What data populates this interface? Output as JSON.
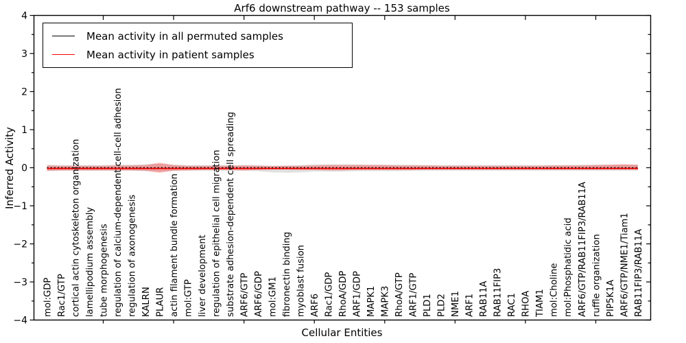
{
  "chart_data": {
    "type": "line",
    "title": "Arf6 downstream pathway -- 153 samples",
    "xlabel": "Cellular Entities",
    "ylabel": "Inferred Activity",
    "ylim": [
      -4,
      4
    ],
    "yticks": [
      4,
      3,
      2,
      1,
      0,
      -1,
      -2,
      -3,
      -4
    ],
    "ytick_labels": [
      "4",
      "3",
      "2",
      "1",
      "0",
      "−1",
      "−2",
      "−3",
      "−4"
    ],
    "grid": false,
    "legend_position": "upper left",
    "categories": [
      "mol:GDP",
      "Rac1/GTP",
      "cortical actin cytoskeleton organization",
      "lamellipodium assembly",
      "tube morphogenesis",
      "regulation of calcium-dependent cell-cell adhesion",
      "regulation of axonogenesis",
      "KALRN",
      "PLAUR",
      "actin filament bundle formation",
      "mol:GTP",
      "liver development",
      "regulation of epithelial cell migration",
      "substrate adhesion-dependent cell spreading",
      "ARF6/GTP",
      "ARF6/GDP",
      "mol:GM1",
      "fibronectin binding",
      "myoblast fusion",
      "ARF6",
      "Rac1/GDP",
      "RhoA/GDP",
      "ARF1/GDP",
      "MAPK1",
      "MAPK3",
      "RhoA/GTP",
      "ARF1/GTP",
      "PLD1",
      "PLD2",
      "NME1",
      "ARF1",
      "RAB11A",
      "RAB11FIP3",
      "RAC1",
      "RHOA",
      "TIAM1",
      "mol:Choline",
      "mol:Phosphatidic acid",
      "ARF6/GTP/RAB11FIP3/RAB11A",
      "ruffle organization",
      "PIP5K1A",
      "ARF6/GTP/NME1/Tiam1",
      "RAB11FIP3/RAB11A"
    ],
    "series": [
      {
        "name": "Mean activity in all permuted samples",
        "color": "#000000",
        "line_style": "dotted",
        "band_color": "#999999",
        "band_opacity": 0.3,
        "mean": [
          0,
          0,
          0,
          0,
          0,
          0,
          0,
          0,
          0,
          0,
          0,
          0,
          0,
          0,
          0,
          0,
          0,
          0,
          0,
          0,
          0,
          0,
          0,
          0,
          0,
          0,
          0,
          0,
          0,
          0,
          0,
          0,
          0,
          0,
          0,
          0,
          0,
          0,
          0,
          0,
          0,
          0,
          0
        ],
        "band_upper": [
          0.08,
          0.07,
          0.07,
          0.07,
          0.07,
          0.08,
          0.08,
          0.09,
          0.1,
          0.08,
          0.07,
          0.07,
          0.07,
          0.07,
          0.07,
          0.07,
          0.06,
          0.06,
          0.07,
          0.09,
          0.09,
          0.09,
          0.09,
          0.08,
          0.08,
          0.08,
          0.08,
          0.07,
          0.07,
          0.07,
          0.07,
          0.07,
          0.07,
          0.07,
          0.07,
          0.07,
          0.07,
          0.07,
          0.08,
          0.08,
          0.08,
          0.08,
          0.08
        ],
        "band_lower": [
          -0.09,
          -0.08,
          -0.08,
          -0.08,
          -0.08,
          -0.08,
          -0.08,
          -0.09,
          -0.1,
          -0.08,
          -0.08,
          -0.08,
          -0.08,
          -0.08,
          -0.08,
          -0.09,
          -0.12,
          -0.13,
          -0.12,
          -0.1,
          -0.1,
          -0.1,
          -0.09,
          -0.09,
          -0.09,
          -0.09,
          -0.08,
          -0.08,
          -0.08,
          -0.08,
          -0.08,
          -0.08,
          -0.08,
          -0.08,
          -0.08,
          -0.08,
          -0.08,
          -0.08,
          -0.08,
          -0.08,
          -0.08,
          -0.08,
          -0.08
        ]
      },
      {
        "name": "Mean activity in patient samples",
        "color": "#ff0000",
        "line_style": "solid",
        "band_color": "#ff0000",
        "band_opacity": 0.3,
        "mean": [
          -0.02,
          -0.02,
          -0.02,
          -0.02,
          -0.02,
          -0.02,
          -0.02,
          -0.02,
          -0.02,
          -0.02,
          -0.02,
          -0.02,
          -0.02,
          -0.02,
          -0.02,
          -0.02,
          -0.02,
          -0.02,
          -0.02,
          -0.02,
          -0.02,
          -0.02,
          -0.02,
          -0.02,
          -0.02,
          -0.02,
          -0.02,
          -0.02,
          -0.02,
          -0.02,
          -0.02,
          -0.02,
          -0.02,
          -0.02,
          -0.02,
          -0.02,
          -0.02,
          -0.02,
          -0.02,
          -0.02,
          -0.02,
          -0.02,
          -0.02
        ],
        "band_upper": [
          0.06,
          0.05,
          0.05,
          0.05,
          0.05,
          0.06,
          0.06,
          0.07,
          0.13,
          0.07,
          0.05,
          0.05,
          0.05,
          0.05,
          0.06,
          0.05,
          0.04,
          0.05,
          0.05,
          0.06,
          0.07,
          0.07,
          0.07,
          0.07,
          0.07,
          0.06,
          0.06,
          0.06,
          0.05,
          0.05,
          0.05,
          0.05,
          0.05,
          0.05,
          0.05,
          0.05,
          0.06,
          0.06,
          0.06,
          0.07,
          0.08,
          0.09,
          0.08
        ],
        "band_lower": [
          -0.08,
          -0.07,
          -0.07,
          -0.07,
          -0.07,
          -0.07,
          -0.07,
          -0.08,
          -0.13,
          -0.08,
          -0.07,
          -0.06,
          -0.06,
          -0.06,
          -0.07,
          -0.06,
          -0.05,
          -0.05,
          -0.06,
          -0.06,
          -0.07,
          -0.07,
          -0.06,
          -0.06,
          -0.06,
          -0.06,
          -0.06,
          -0.05,
          -0.05,
          -0.05,
          -0.05,
          -0.05,
          -0.05,
          -0.05,
          -0.05,
          -0.05,
          -0.05,
          -0.05,
          -0.05,
          -0.05,
          -0.05,
          -0.05,
          -0.05
        ]
      }
    ]
  }
}
